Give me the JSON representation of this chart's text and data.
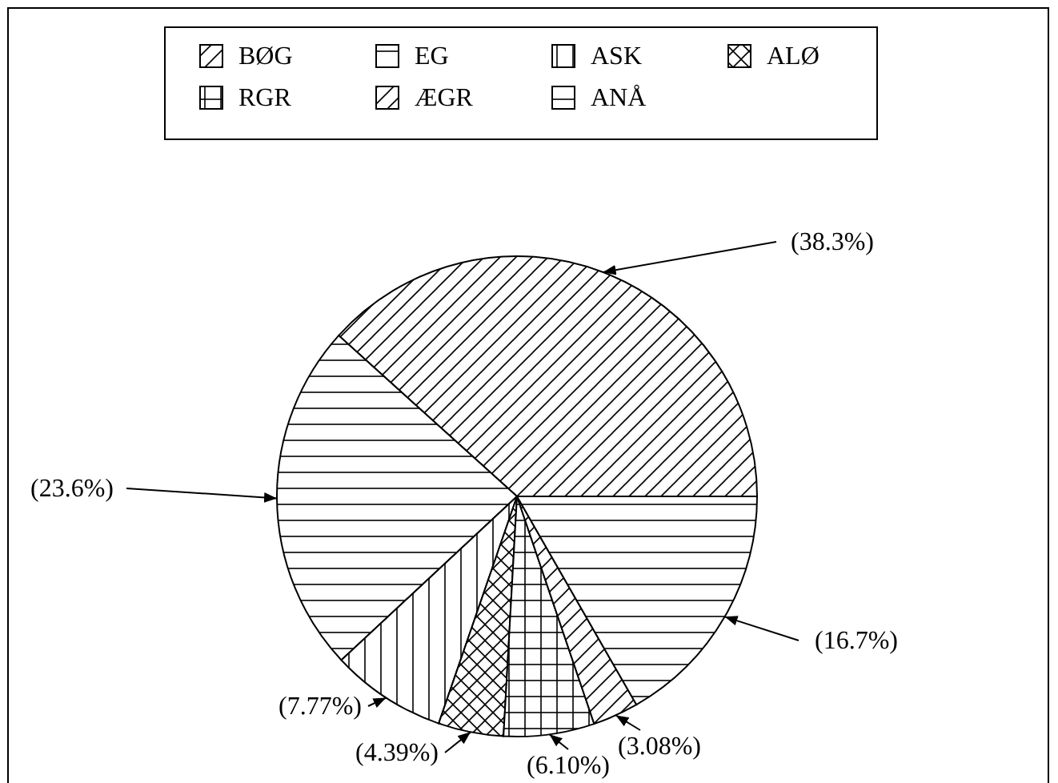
{
  "chart_data": {
    "type": "pie",
    "categories": [
      "BØG",
      "EG",
      "ASK",
      "ALØ",
      "RGR",
      "ÆGR",
      "ANÅ"
    ],
    "values": [
      38.3,
      23.6,
      7.77,
      4.39,
      6.1,
      3.08,
      16.7
    ],
    "value_labels": [
      "(38.3%)",
      "(23.6%)",
      "(7.77%)",
      "(4.39%)",
      "(6.10%)",
      "(3.08%)",
      "(16.7%)"
    ],
    "colors": [
      "#000000",
      "#000000",
      "#000000",
      "#000000",
      "#000000",
      "#000000",
      "#000000"
    ],
    "legend": "top"
  }
}
